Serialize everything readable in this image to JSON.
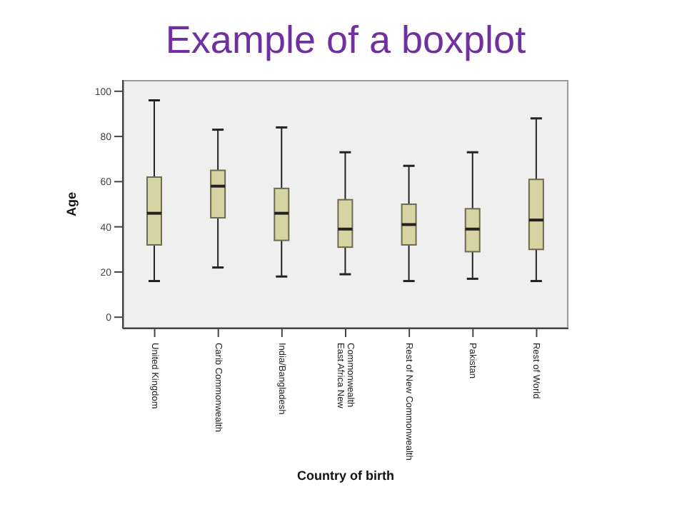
{
  "chart_data": {
    "type": "box",
    "title": "Example of a boxplot",
    "xlabel": "Country of birth",
    "ylabel": "Age",
    "categories": [
      "United Kingdom",
      "Carib Commonwealth",
      "India/Bangladesh",
      "East Africa New Commonwealth",
      "Rest of New Commonwealth",
      "Pakistan",
      "Rest of World"
    ],
    "color": "#d8d3a3",
    "boxes": [
      {
        "low": 16,
        "q1": 32,
        "median": 46,
        "q3": 62,
        "high": 96
      },
      {
        "low": 22,
        "q1": 44,
        "median": 58,
        "q3": 65,
        "high": 83
      },
      {
        "low": 18,
        "q1": 34,
        "median": 46,
        "q3": 57,
        "high": 84
      },
      {
        "low": 19,
        "q1": 31,
        "median": 39,
        "q3": 52,
        "high": 73
      },
      {
        "low": 16,
        "q1": 32,
        "median": 41,
        "q3": 50,
        "high": 67
      },
      {
        "low": 17,
        "q1": 29,
        "median": 39,
        "q3": 48,
        "high": 73
      },
      {
        "low": 16,
        "q1": 30,
        "median": 43,
        "q3": 61,
        "high": 88
      }
    ],
    "ylim": [
      -5,
      105
    ],
    "yticks": [
      0,
      20,
      40,
      60,
      80,
      100
    ],
    "grid": false
  }
}
